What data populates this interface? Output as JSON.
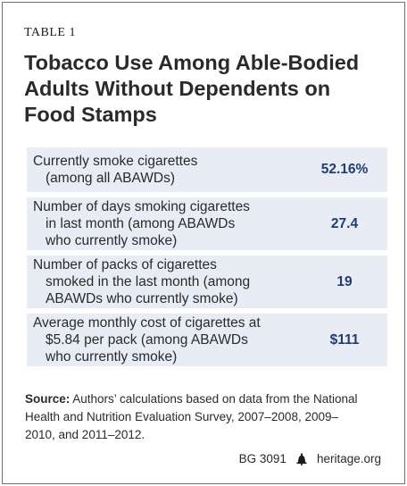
{
  "table_label": "TABLE 1",
  "title": [
    "Tobacco Use Among Able-Bodied",
    "Adults Without Dependents on",
    "Food Stamps"
  ],
  "rows": [
    {
      "lines": [
        "Currently smoke cigarettes",
        "(among all ABAWDs)"
      ],
      "value": "52.16%"
    },
    {
      "lines": [
        "Number of days smoking cigarettes",
        "in last month (among ABAWDs",
        "who currently smoke)"
      ],
      "value": "27.4"
    },
    {
      "lines": [
        "Number of packs of cigarettes",
        "smoked in the last month (among",
        "ABAWDs who currently smoke)"
      ],
      "value": "19"
    },
    {
      "lines": [
        "Average monthly cost of cigarettes at",
        "$5.84 per pack (among ABAWDs",
        "who currently smoke)"
      ],
      "value": "$111"
    }
  ],
  "source": {
    "label": "Source:",
    "lines": [
      "Authors’ calculations based on data from the National",
      "Health and Nutrition Evaluation Survey, 2007–2008, 2009–",
      "2010, and 2011–2012."
    ]
  },
  "footer": {
    "code": "BG 3091",
    "icon": "liberty-bell-icon",
    "site": "heritage.org"
  },
  "colors": {
    "row_bg": "#e8edf5",
    "value_text": "#1f3d73",
    "border": "#6f6f6f"
  }
}
